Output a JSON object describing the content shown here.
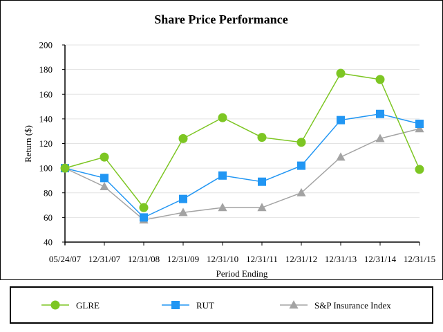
{
  "chart_data": {
    "type": "line",
    "title": "Share Price Performance",
    "xlabel": "Period Ending",
    "ylabel": "Return ($)",
    "categories": [
      "05/24/07",
      "12/31/07",
      "12/31/08",
      "12/31/09",
      "12/31/10",
      "12/31/11",
      "12/31/12",
      "12/31/13",
      "12/31/14",
      "12/31/15"
    ],
    "ylim": [
      40,
      200
    ],
    "yticks": [
      40,
      60,
      80,
      100,
      120,
      140,
      160,
      180,
      200
    ],
    "grid": true,
    "legend_position": "bottom",
    "series": [
      {
        "name": "GLRE",
        "marker": "circle",
        "color": "#7dc623",
        "values": [
          100,
          109,
          68,
          124,
          141,
          125,
          121,
          177,
          172,
          99
        ]
      },
      {
        "name": "RUT",
        "marker": "square",
        "color": "#2196f3",
        "values": [
          100,
          92,
          60,
          75,
          94,
          89,
          102,
          139,
          144,
          136
        ]
      },
      {
        "name": "S&P Insurance Index",
        "marker": "triangle",
        "color": "#a3a3a3",
        "values": [
          100,
          85,
          58,
          64,
          68,
          68,
          80,
          109,
          124,
          132
        ]
      }
    ]
  }
}
